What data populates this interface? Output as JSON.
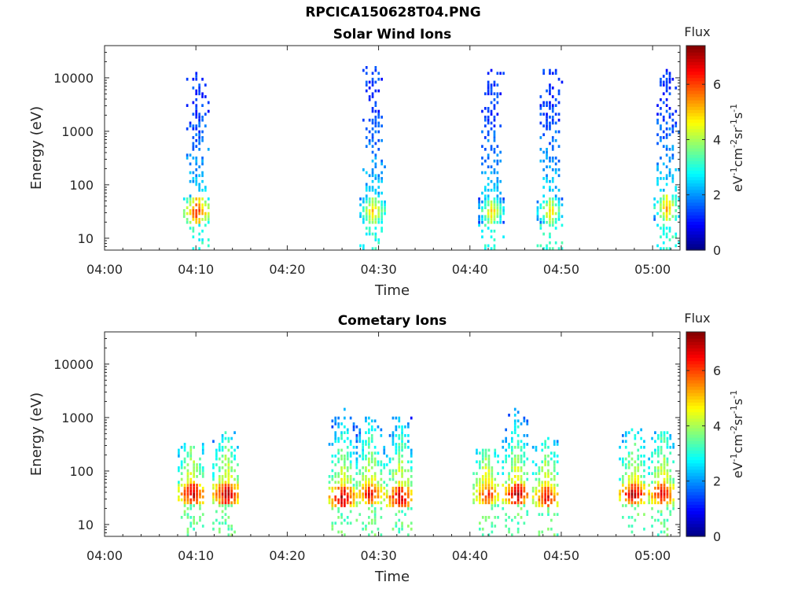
{
  "figure": {
    "title": "RPCICA150628T04.PNG"
  },
  "chart_data": [
    {
      "type": "heatmap",
      "title": "Solar Wind Ions",
      "xlabel": "Time",
      "ylabel": "Energy (eV)",
      "x_ticks": [
        "04:00",
        "04:10",
        "04:20",
        "04:30",
        "04:40",
        "04:50",
        "05:00"
      ],
      "x_range_minutes": [
        0,
        63
      ],
      "y_scale": "log",
      "y_range": [
        6,
        40000
      ],
      "y_ticks": [
        "10",
        "100",
        "1000",
        "10000"
      ],
      "colorbar": {
        "label": "Flux",
        "unit_label": "eV-1cm-2sr-1s-1",
        "range": [
          0,
          7.4
        ],
        "ticks": [
          "0",
          "2",
          "4",
          "6"
        ]
      },
      "bursts": [
        {
          "time_min": 10.0,
          "core_energy": 30,
          "core_flux": 6.5,
          "max_energy": 12000,
          "halo_flux": 1.3
        },
        {
          "time_min": 29.3,
          "core_energy": 30,
          "core_flux": 5.5,
          "max_energy": 16000,
          "halo_flux": 1.3
        },
        {
          "time_min": 42.3,
          "core_energy": 30,
          "core_flux": 5.2,
          "max_energy": 14000,
          "halo_flux": 1.3
        },
        {
          "time_min": 48.7,
          "core_energy": 30,
          "core_flux": 5.2,
          "max_energy": 14000,
          "halo_flux": 1.3
        },
        {
          "time_min": 61.5,
          "core_energy": 35,
          "core_flux": 5.6,
          "max_energy": 14000,
          "halo_flux": 1.3
        }
      ]
    },
    {
      "type": "heatmap",
      "title": "Cometary Ions",
      "xlabel": "Time",
      "ylabel": "Energy (eV)",
      "x_ticks": [
        "04:00",
        "04:10",
        "04:20",
        "04:30",
        "04:40",
        "04:50",
        "05:00"
      ],
      "x_range_minutes": [
        0,
        63
      ],
      "y_scale": "log",
      "y_range": [
        6,
        40000
      ],
      "y_ticks": [
        "10",
        "100",
        "1000",
        "10000"
      ],
      "colorbar": {
        "label": "Flux",
        "unit_label": "eV-1cm-2sr-1s-1",
        "range": [
          0,
          7.4
        ],
        "ticks": [
          "0",
          "2",
          "4",
          "6"
        ]
      },
      "bursts": [
        {
          "time_min": 9.5,
          "core_energy": 35,
          "core_flux": 7.2,
          "max_energy": 300
        },
        {
          "time_min": 13.3,
          "core_energy": 35,
          "core_flux": 7.3,
          "max_energy": 500
        },
        {
          "time_min": 26.0,
          "core_energy": 30,
          "core_flux": 7.3,
          "max_energy": 1500
        },
        {
          "time_min": 29.0,
          "core_energy": 35,
          "core_flux": 6.8,
          "max_energy": 1000
        },
        {
          "time_min": 32.3,
          "core_energy": 30,
          "core_flux": 7.2,
          "max_energy": 1000
        },
        {
          "time_min": 41.8,
          "core_energy": 35,
          "core_flux": 6.6,
          "max_energy": 250
        },
        {
          "time_min": 45.0,
          "core_energy": 35,
          "core_flux": 7.3,
          "max_energy": 1500
        },
        {
          "time_min": 48.3,
          "core_energy": 30,
          "core_flux": 6.8,
          "max_energy": 400
        },
        {
          "time_min": 57.8,
          "core_energy": 35,
          "core_flux": 7.2,
          "max_energy": 600
        },
        {
          "time_min": 61.0,
          "core_energy": 35,
          "core_flux": 7.0,
          "max_energy": 500
        }
      ]
    }
  ]
}
